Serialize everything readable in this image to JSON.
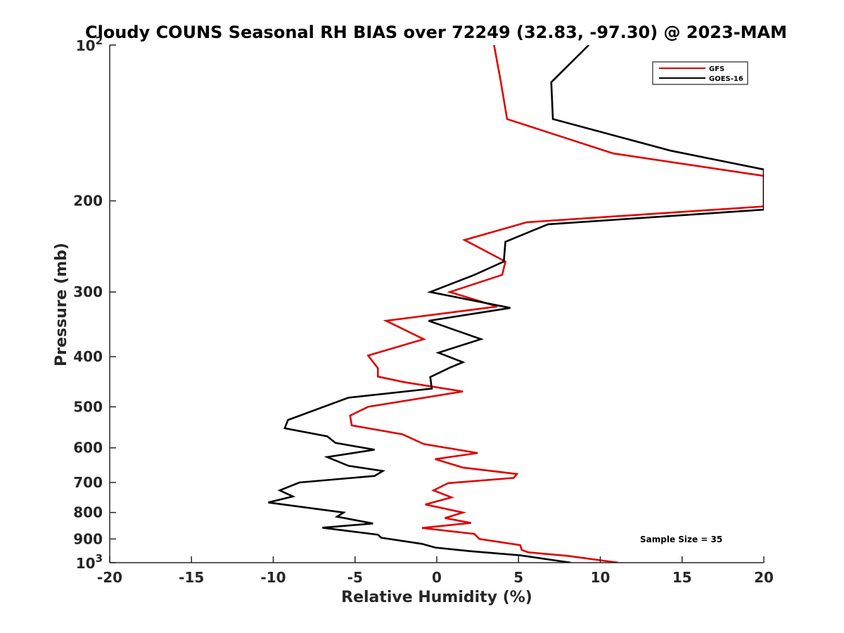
{
  "chart_data": {
    "type": "line",
    "title": "Cloudy COUNS Seasonal RH BIAS over 72249 (32.83, -97.30) @ 2023-MAM",
    "xlabel": "Relative Humidity (%)",
    "ylabel": "Pressure (mb)",
    "xlim": [
      -20,
      20
    ],
    "ylim": [
      100,
      1000
    ],
    "yscale": "log",
    "y_reversed": true,
    "grid": false,
    "legend_position": "top-right",
    "annotation": "Sample Size = 35",
    "x_ticks": [
      "-20",
      "-15",
      "-10",
      "-5",
      "0",
      "5",
      "10",
      "15",
      "20"
    ],
    "y_ticks": [
      {
        "value": 100,
        "base": "10",
        "exp": "2"
      },
      {
        "value": 200,
        "label": "200"
      },
      {
        "value": 300,
        "label": "300"
      },
      {
        "value": 400,
        "label": "400"
      },
      {
        "value": 500,
        "label": "500"
      },
      {
        "value": 600,
        "label": "600"
      },
      {
        "value": 700,
        "label": "700"
      },
      {
        "value": 800,
        "label": "800"
      },
      {
        "value": 900,
        "label": "900"
      },
      {
        "value": 1000,
        "base": "10",
        "exp": "3"
      }
    ],
    "series": [
      {
        "name": "GFS",
        "color": "#e00000",
        "points": [
          [
            3.5,
            100
          ],
          [
            3.9,
            117
          ],
          [
            4.3,
            139
          ],
          [
            10.8,
            162
          ],
          [
            20,
            179
          ],
          [
            20,
            205
          ],
          [
            5.5,
            220
          ],
          [
            1.7,
            238
          ],
          [
            4.2,
            262
          ],
          [
            4.0,
            278
          ],
          [
            0.8,
            300
          ],
          [
            3.7,
            320
          ],
          [
            -3.1,
            341
          ],
          [
            -0.8,
            370
          ],
          [
            -4.2,
            398
          ],
          [
            -3.6,
            421
          ],
          [
            -3.6,
            437
          ],
          [
            -2.0,
            448
          ],
          [
            1.6,
            467
          ],
          [
            -4.2,
            500
          ],
          [
            -5.3,
            520
          ],
          [
            -5.2,
            543
          ],
          [
            -2.1,
            565
          ],
          [
            -0.8,
            590
          ],
          [
            2.5,
            614
          ],
          [
            -0.1,
            631
          ],
          [
            1.6,
            655
          ],
          [
            4.9,
            674
          ],
          [
            4.7,
            686
          ],
          [
            0.7,
            702
          ],
          [
            -0.2,
            725
          ],
          [
            0.9,
            748
          ],
          [
            -0.7,
            772
          ],
          [
            1.6,
            800
          ],
          [
            0.5,
            820
          ],
          [
            2.1,
            838
          ],
          [
            -0.9,
            857
          ],
          [
            2.3,
            880
          ],
          [
            2.6,
            900
          ],
          [
            5.1,
            925
          ],
          [
            5.2,
            945
          ],
          [
            5.6,
            955
          ],
          [
            8.0,
            970
          ],
          [
            11.1,
            1000
          ]
        ]
      },
      {
        "name": "GOES-16",
        "color": "#000000",
        "points": [
          [
            9.3,
            100
          ],
          [
            7.0,
            118
          ],
          [
            7.1,
            139
          ],
          [
            14.3,
            160
          ],
          [
            20,
            174
          ],
          [
            20,
            208
          ],
          [
            6.8,
            222
          ],
          [
            4.2,
            240
          ],
          [
            4.1,
            262
          ],
          [
            2.3,
            278
          ],
          [
            -0.4,
            300
          ],
          [
            4.5,
            322
          ],
          [
            -0.5,
            341
          ],
          [
            2.7,
            370
          ],
          [
            0.1,
            393
          ],
          [
            1.6,
            410
          ],
          [
            0.8,
            420
          ],
          [
            -0.4,
            438
          ],
          [
            -0.3,
            461
          ],
          [
            -5.4,
            480
          ],
          [
            -9.1,
            530
          ],
          [
            -9.3,
            550
          ],
          [
            -6.7,
            570
          ],
          [
            -6.2,
            587
          ],
          [
            -3.8,
            605
          ],
          [
            -6.7,
            625
          ],
          [
            -5.4,
            650
          ],
          [
            -3.3,
            665
          ],
          [
            -3.8,
            680
          ],
          [
            -8.4,
            700
          ],
          [
            -9.6,
            725
          ],
          [
            -8.8,
            745
          ],
          [
            -10.3,
            765
          ],
          [
            -5.7,
            800
          ],
          [
            -6.1,
            815
          ],
          [
            -3.9,
            840
          ],
          [
            -7.0,
            856
          ],
          [
            -3.6,
            883
          ],
          [
            -3.4,
            895
          ],
          [
            -0.9,
            920
          ],
          [
            -0.1,
            935
          ],
          [
            2.0,
            950
          ],
          [
            5.1,
            968
          ],
          [
            8.2,
            1000
          ]
        ]
      }
    ]
  }
}
